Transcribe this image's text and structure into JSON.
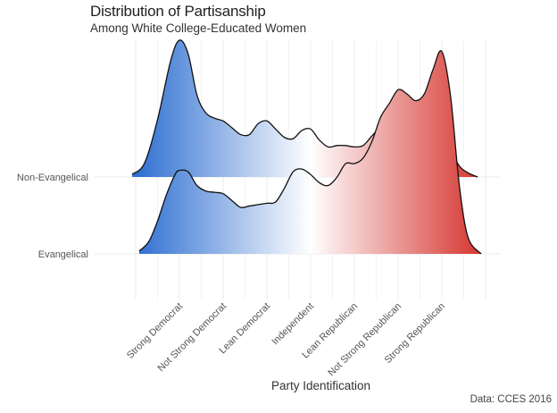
{
  "title": "Distribution of Partisanship",
  "subtitle": "Among White College-Educated Women",
  "caption": "Data: CCES 2016",
  "chart_data": {
    "type": "area",
    "subtype": "ridgeline-density",
    "title": "Distribution of Partisanship",
    "subtitle": "Among White College-Educated Women",
    "xlabel": "Party Identification",
    "ylabel": "",
    "caption": "Data: CCES 2016",
    "categories": [
      "Strong Democrat",
      "Not Strong Democrat",
      "Lean Democrat",
      "Independent",
      "Lean Republican",
      "Not Strong Republican",
      "Strong Republican"
    ],
    "x_ticks": [
      1,
      2,
      3,
      4,
      5,
      6,
      7
    ],
    "xlim": [
      0,
      8
    ],
    "grid": true,
    "fill_gradient": {
      "low": "#3a78d4",
      "mid": "#ffffff",
      "high": "#d83a2e",
      "midpoint": 4
    },
    "groups": [
      "Evangelical",
      "Non-Evangelical"
    ],
    "series": [
      {
        "name": "Non-Evangelical",
        "x": [
          -0.08,
          0.2,
          0.5,
          0.8,
          1.0,
          1.2,
          1.4,
          1.6,
          1.8,
          2.0,
          2.2,
          2.4,
          2.6,
          2.8,
          3.0,
          3.2,
          3.4,
          3.6,
          3.8,
          4.0,
          4.2,
          4.4,
          4.6,
          4.8,
          5.0,
          5.2,
          5.4,
          5.6,
          5.8,
          6.0,
          6.2,
          6.4,
          6.6,
          6.8,
          7.0,
          7.2,
          7.4,
          7.6,
          7.82
        ],
        "density": [
          0.02,
          0.1,
          0.42,
          0.85,
          1.0,
          0.9,
          0.6,
          0.47,
          0.43,
          0.41,
          0.36,
          0.31,
          0.31,
          0.39,
          0.41,
          0.35,
          0.29,
          0.28,
          0.34,
          0.35,
          0.27,
          0.22,
          0.23,
          0.23,
          0.22,
          0.23,
          0.3,
          0.36,
          0.34,
          0.36,
          0.3,
          0.26,
          0.3,
          0.33,
          0.3,
          0.2,
          0.08,
          0.03,
          0.0
        ]
      },
      {
        "name": "Evangelical",
        "x": [
          0.08,
          0.3,
          0.5,
          0.7,
          0.9,
          1.0,
          1.2,
          1.4,
          1.6,
          1.8,
          2.0,
          2.2,
          2.4,
          2.6,
          2.8,
          3.0,
          3.2,
          3.4,
          3.6,
          3.8,
          4.0,
          4.2,
          4.4,
          4.6,
          4.8,
          5.0,
          5.2,
          5.4,
          5.6,
          5.8,
          6.0,
          6.2,
          6.4,
          6.6,
          6.8,
          7.0,
          7.2,
          7.4,
          7.6,
          7.9
        ],
        "density": [
          0.02,
          0.09,
          0.24,
          0.43,
          0.58,
          0.61,
          0.6,
          0.5,
          0.46,
          0.45,
          0.44,
          0.39,
          0.34,
          0.35,
          0.36,
          0.37,
          0.38,
          0.48,
          0.6,
          0.62,
          0.58,
          0.52,
          0.5,
          0.56,
          0.66,
          0.66,
          0.7,
          0.82,
          1.0,
          1.1,
          1.2,
          1.17,
          1.12,
          1.17,
          1.35,
          1.48,
          1.15,
          0.5,
          0.12,
          0.0
        ]
      }
    ]
  }
}
